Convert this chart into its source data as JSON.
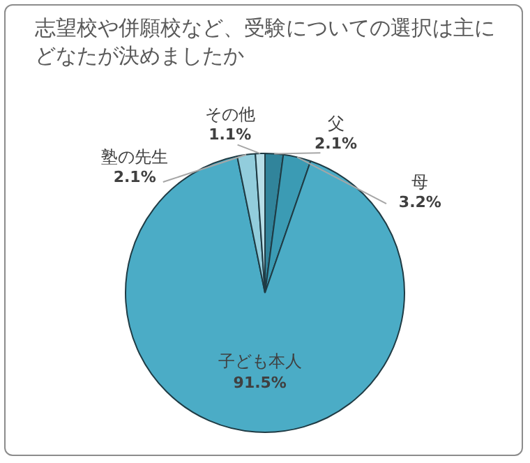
{
  "chart_data": {
    "type": "pie",
    "title": "志望校や併願校など、受験についての選択は主にどなたが決めましたか",
    "categories": [
      "父",
      "母",
      "子ども本人",
      "塾の先生",
      "その他"
    ],
    "values": [
      2.1,
      3.2,
      91.5,
      2.1,
      1.1
    ],
    "value_labels": [
      "2.1%",
      "3.2%",
      "91.5%",
      "2.1%",
      "1.1%"
    ],
    "colors": [
      "#31849b",
      "#3b9bb4",
      "#4bacc6",
      "#92cddc",
      "#b7dee8"
    ],
    "legend": false
  }
}
